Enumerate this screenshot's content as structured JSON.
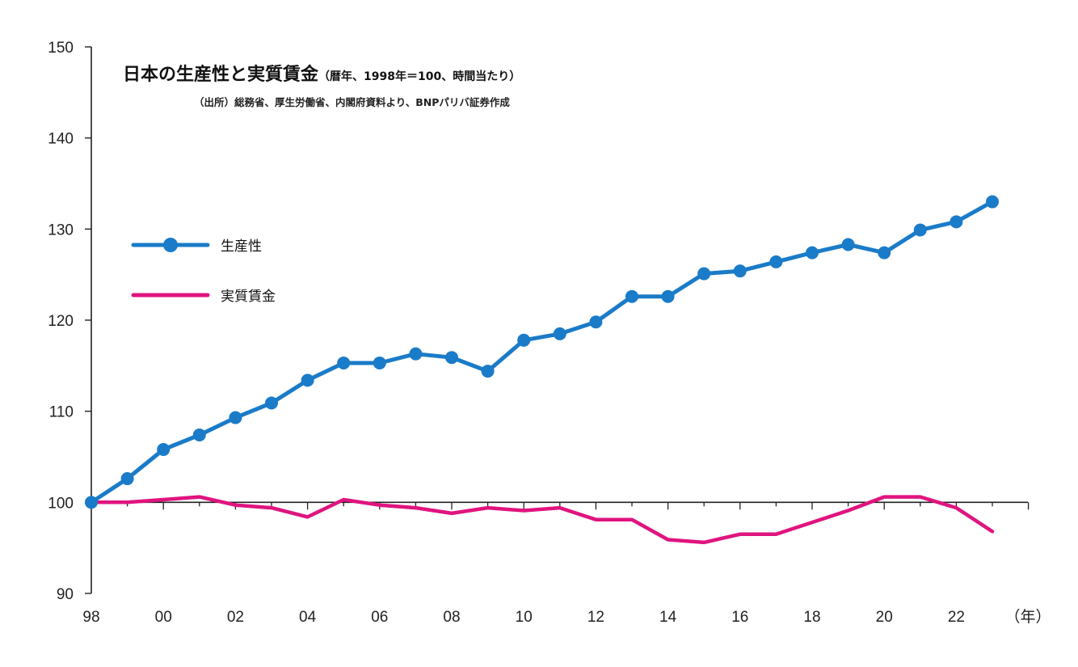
{
  "chart_data": {
    "type": "line",
    "title": "日本の生産性と実質賃金",
    "subtitle": "（暦年、1998年＝100、時間当たり）",
    "source": "（出所）総務省、厚生労働省、内閣府資料より、BNPパリバ証券作成",
    "xlabel": "（年）",
    "ylabel": "",
    "ylim": [
      90,
      150
    ],
    "yticks": [
      90,
      100,
      110,
      120,
      130,
      140,
      150
    ],
    "x": [
      1998,
      1999,
      2000,
      2001,
      2002,
      2003,
      2004,
      2005,
      2006,
      2007,
      2008,
      2009,
      2010,
      2011,
      2012,
      2013,
      2014,
      2015,
      2016,
      2017,
      2018,
      2019,
      2020,
      2021,
      2022,
      2023
    ],
    "xticks": [
      {
        "year": 1998,
        "label": "98"
      },
      {
        "year": 2000,
        "label": "00"
      },
      {
        "year": 2002,
        "label": "02"
      },
      {
        "year": 2004,
        "label": "04"
      },
      {
        "year": 2006,
        "label": "06"
      },
      {
        "year": 2008,
        "label": "08"
      },
      {
        "year": 2010,
        "label": "10"
      },
      {
        "year": 2012,
        "label": "12"
      },
      {
        "year": 2014,
        "label": "14"
      },
      {
        "year": 2016,
        "label": "16"
      },
      {
        "year": 2018,
        "label": "18"
      },
      {
        "year": 2020,
        "label": "20"
      },
      {
        "year": 2022,
        "label": "22"
      }
    ],
    "series": [
      {
        "name": "生産性",
        "color": "#1a7bc8",
        "markers": true,
        "values": [
          100.0,
          102.6,
          105.8,
          107.4,
          109.3,
          110.9,
          113.4,
          115.3,
          115.3,
          116.3,
          115.9,
          114.4,
          117.8,
          118.5,
          119.8,
          122.6,
          122.6,
          125.1,
          125.4,
          126.4,
          127.4,
          128.3,
          127.4,
          129.9,
          130.8,
          133.0
        ]
      },
      {
        "name": "実質賃金",
        "color": "#e0147f",
        "markers": false,
        "values": [
          100.0,
          100.0,
          100.3,
          100.6,
          99.7,
          99.4,
          98.4,
          100.3,
          99.7,
          99.4,
          98.8,
          99.4,
          99.1,
          99.4,
          98.1,
          98.1,
          95.9,
          95.6,
          96.5,
          96.5,
          97.8,
          99.1,
          100.6,
          100.6,
          99.4,
          96.8
        ]
      }
    ],
    "legend": "upper-left",
    "grid": false
  }
}
